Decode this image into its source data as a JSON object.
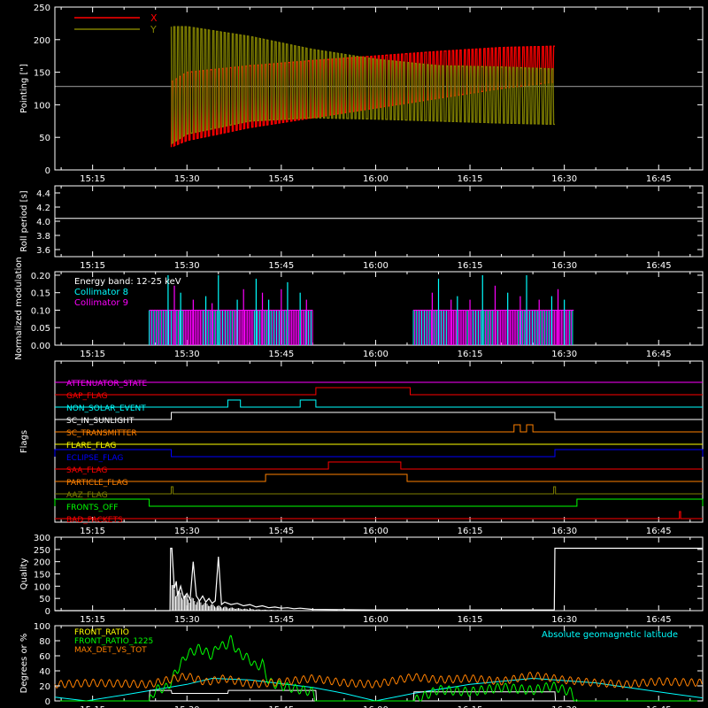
{
  "colors": {
    "bg": "#000000",
    "fg": "#ffffff",
    "x_red": "#ff0000",
    "y_olive": "#808000",
    "cyan": "#00ffff",
    "magenta": "#ff00ff",
    "green": "#00ff00",
    "orange": "#ff8000"
  },
  "time_ticks": [
    "15:15",
    "15:30",
    "15:45",
    "16:00",
    "16:15",
    "16:30",
    "16:45"
  ],
  "time_tick_minutes": [
    15,
    30,
    45,
    60,
    75,
    90,
    105
  ],
  "time_range_minutes": [
    9,
    112
  ],
  "chart_data": [
    {
      "id": "pointing",
      "type": "line",
      "ylabel": "Pointing [\"]",
      "ylim": [
        0,
        250
      ],
      "yticks": [
        "0",
        "50",
        "100",
        "150",
        "200",
        "250"
      ],
      "ytick_values": [
        0,
        50,
        100,
        150,
        200,
        250
      ],
      "reference_line": 128,
      "legend": [
        "X",
        "Y"
      ],
      "series": [
        {
          "name": "X",
          "color": "#ff0000",
          "start": 27.5,
          "end": 88.5,
          "envelope_upper": [
            [
              27.5,
              135
            ],
            [
              30,
              150
            ],
            [
              40,
              160
            ],
            [
              50,
              168
            ],
            [
              60,
              175
            ],
            [
              70,
              182
            ],
            [
              80,
              188
            ],
            [
              88.5,
              190
            ]
          ],
          "envelope_lower": [
            [
              27.5,
              35
            ],
            [
              30,
              45
            ],
            [
              40,
              65
            ],
            [
              50,
              80
            ],
            [
              60,
              95
            ],
            [
              70,
              110
            ],
            [
              80,
              125
            ],
            [
              88.5,
              135
            ]
          ]
        },
        {
          "name": "Y",
          "color": "#808000",
          "start": 27.5,
          "end": 88.5,
          "envelope_upper": [
            [
              27.5,
              220
            ],
            [
              30,
              220
            ],
            [
              40,
              205
            ],
            [
              50,
              185
            ],
            [
              60,
              170
            ],
            [
              70,
              160
            ],
            [
              80,
              158
            ],
            [
              88.5,
              155
            ]
          ],
          "envelope_lower": [
            [
              27.5,
              40
            ],
            [
              30,
              55
            ],
            [
              40,
              75
            ],
            [
              50,
              80
            ],
            [
              60,
              78
            ],
            [
              70,
              75
            ],
            [
              80,
              72
            ],
            [
              88.5,
              70
            ]
          ]
        }
      ]
    },
    {
      "id": "roll_period",
      "type": "line",
      "ylabel": "Roll period [s]",
      "ylim": [
        3.5,
        4.5
      ],
      "yticks": [
        "3.6",
        "3.8",
        "4.0",
        "4.2",
        "4.4"
      ],
      "ytick_values": [
        3.6,
        3.8,
        4.0,
        4.2,
        4.4
      ],
      "series": [
        {
          "name": "",
          "color": "#ffffff",
          "x": [
            9,
            112
          ],
          "y": [
            4.04,
            4.04
          ]
        }
      ]
    },
    {
      "id": "modulation",
      "type": "bar",
      "ylabel": "Normalized modulation",
      "ylim": [
        0,
        0.21
      ],
      "yticks": [
        "0.00",
        "0.05",
        "0.10",
        "0.15",
        "0.20"
      ],
      "ytick_values": [
        0,
        0.05,
        0.1,
        0.15,
        0.2
      ],
      "legend": [
        "Energy band: 12-25 keV",
        "Collimator 8",
        "Collimator 9"
      ],
      "segments": [
        [
          24,
          50
        ],
        [
          66,
          91.5
        ]
      ],
      "base_level": 0.1,
      "series": [
        {
          "name": "Collimator 8",
          "color": "#00ffff",
          "spikes": [
            [
              27,
              0.2
            ],
            [
              29,
              0.15
            ],
            [
              33,
              0.14
            ],
            [
              35,
              0.2
            ],
            [
              38,
              0.13
            ],
            [
              41,
              0.19
            ],
            [
              43,
              0.13
            ],
            [
              46,
              0.18
            ],
            [
              48,
              0.15
            ],
            [
              70,
              0.19
            ],
            [
              73,
              0.14
            ],
            [
              77,
              0.2
            ],
            [
              81,
              0.15
            ],
            [
              84,
              0.2
            ],
            [
              88,
              0.14
            ],
            [
              90,
              0.13
            ]
          ]
        },
        {
          "name": "Collimator 9",
          "color": "#ff00ff",
          "spikes": [
            [
              28,
              0.17
            ],
            [
              31,
              0.13
            ],
            [
              34,
              0.12
            ],
            [
              39,
              0.16
            ],
            [
              42,
              0.15
            ],
            [
              45,
              0.16
            ],
            [
              49,
              0.13
            ],
            [
              69,
              0.15
            ],
            [
              72,
              0.13
            ],
            [
              75,
              0.13
            ],
            [
              79,
              0.17
            ],
            [
              83,
              0.14
            ],
            [
              86,
              0.13
            ],
            [
              89,
              0.16
            ]
          ]
        }
      ]
    },
    {
      "id": "flags",
      "type": "line",
      "ylabel": "Flags",
      "flags": [
        {
          "name": "ATTENUATOR_STATE",
          "color": "#ff00ff",
          "high": []
        },
        {
          "name": "GAP_FLAG",
          "color": "#ff0000",
          "high": [
            [
              50.5,
              65.5
            ]
          ]
        },
        {
          "name": "NON_SOLAR_EVENT",
          "color": "#00ffff",
          "high": [
            [
              36.5,
              38.5
            ],
            [
              48,
              50.5
            ]
          ]
        },
        {
          "name": "SC_IN_SUNLIGHT",
          "color": "#ffffff",
          "high": [
            [
              27.5,
              88.5
            ]
          ]
        },
        {
          "name": "SC_TRANSMITTER",
          "color": "#ff8000",
          "high": [
            [
              82,
              83
            ],
            [
              84,
              85
            ]
          ]
        },
        {
          "name": "FLARE_FLAG",
          "color": "#ffff00",
          "high": []
        },
        {
          "name": "ECLIPSE_FLAG",
          "color": "#0000ff",
          "high": [
            [
              9,
              27.5
            ],
            [
              88.5,
              112
            ]
          ]
        },
        {
          "name": "SAA_FLAG",
          "color": "#ff0000",
          "high": [
            [
              52.5,
              64
            ]
          ]
        },
        {
          "name": "PARTICLE_FLAG",
          "color": "#ff8000",
          "high": [
            [
              42.5,
              65
            ]
          ]
        },
        {
          "name": "AAZ_FLAG",
          "color": "#808000",
          "high": [
            [
              27.5,
              27.8
            ],
            [
              88.3,
              88.6
            ]
          ]
        },
        {
          "name": "FRONTS_OFF",
          "color": "#00ff00",
          "high": [
            [
              9,
              24
            ],
            [
              92,
              112
            ]
          ]
        },
        {
          "name": "BAD_PACKETS",
          "color": "#ff0000",
          "high": [
            [
              108.3,
              108.5
            ]
          ]
        }
      ]
    },
    {
      "id": "quality",
      "type": "line",
      "ylabel": "Quality",
      "ylim": [
        0,
        300
      ],
      "yticks": [
        "0",
        "50",
        "100",
        "150",
        "200",
        "250",
        "300"
      ],
      "ytick_values": [
        0,
        50,
        100,
        150,
        200,
        250,
        300
      ],
      "series": [
        {
          "name": "",
          "color": "#ffffff",
          "x": [
            9,
            27.3,
            27.4,
            27.6,
            28,
            28.3,
            28.5,
            29,
            29.5,
            30,
            30.5,
            31,
            31.5,
            32,
            32.5,
            33,
            33.5,
            34,
            34.5,
            35,
            35.5,
            36,
            37,
            38,
            39,
            40,
            41,
            42,
            43,
            44,
            45,
            46,
            47,
            48,
            50,
            60,
            70,
            80,
            88.4,
            88.5,
            112
          ],
          "y": [
            0,
            0,
            255,
            255,
            90,
            120,
            60,
            100,
            50,
            70,
            45,
            200,
            60,
            40,
            60,
            35,
            50,
            30,
            40,
            220,
            25,
            35,
            25,
            30,
            20,
            25,
            15,
            20,
            12,
            15,
            10,
            12,
            8,
            10,
            5,
            3,
            3,
            3,
            3,
            255,
            255
          ]
        }
      ]
    },
    {
      "id": "geomagnetic",
      "type": "line",
      "ylabel": "Degrees or %",
      "ylim": [
        0,
        100
      ],
      "yticks": [
        "0",
        "20",
        "40",
        "60",
        "80",
        "100"
      ],
      "ytick_values": [
        0,
        20,
        40,
        60,
        80,
        100
      ],
      "annotation": "Absolute geomagnetic latitude",
      "legend": [
        "FRONT_RATIO",
        "FRONT_RATIO_1225",
        "MAX_DET_VS_TOT"
      ],
      "series": [
        {
          "name": "Absolute geomagnetic latitude",
          "color": "#00ffff",
          "x": [
            9,
            14,
            20,
            30,
            34,
            40,
            50,
            55,
            60,
            66,
            75,
            85,
            95,
            105,
            112
          ],
          "y": [
            5,
            0,
            8,
            22,
            30,
            28,
            18,
            10,
            0,
            10,
            22,
            30,
            24,
            12,
            4
          ]
        },
        {
          "name": "FRONT_RATIO",
          "color": "#ffffff",
          "x": [
            9,
            24,
            24.1,
            27.5,
            27.6,
            36.5,
            36.6,
            50.5,
            50.6,
            66,
            66.1,
            88.5,
            88.6,
            112
          ],
          "y": [
            0,
            0,
            14,
            14,
            10,
            10,
            14,
            14,
            0,
            0,
            12,
            12,
            0,
            0
          ]
        },
        {
          "name": "FRONT_RATIO_1225",
          "color": "#00ff00",
          "x": [
            9,
            24,
            25,
            27,
            28,
            30,
            32,
            34,
            35,
            36,
            37,
            38,
            39,
            40,
            41,
            42,
            43,
            45,
            48,
            50,
            50.6,
            66,
            70,
            75,
            80,
            85,
            88,
            91,
            92,
            112
          ],
          "y": [
            0,
            0,
            15,
            18,
            35,
            62,
            70,
            60,
            75,
            72,
            82,
            65,
            60,
            55,
            45,
            50,
            25,
            20,
            15,
            12,
            0,
            0,
            15,
            12,
            18,
            14,
            20,
            12,
            0,
            0
          ]
        },
        {
          "name": "MAX_DET_VS_TOT",
          "color": "#ff8000",
          "x": [
            9,
            15,
            20,
            24,
            27,
            30,
            33,
            36,
            40,
            45,
            50,
            55,
            60,
            66,
            70,
            75,
            80,
            85,
            90,
            95,
            100,
            105,
            112
          ],
          "y": [
            22,
            24,
            23,
            22,
            28,
            33,
            25,
            30,
            22,
            25,
            30,
            24,
            22,
            32,
            28,
            30,
            26,
            34,
            28,
            24,
            22,
            26,
            24
          ]
        }
      ]
    }
  ]
}
